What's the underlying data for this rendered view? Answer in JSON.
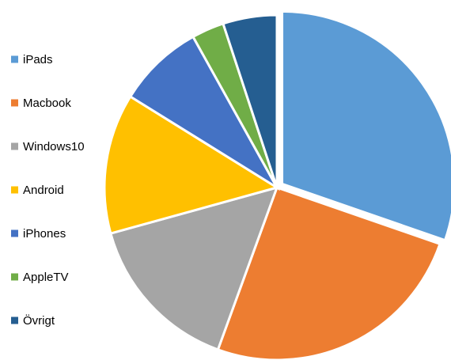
{
  "chart_data": {
    "type": "pie",
    "title": "",
    "legend_position": "left",
    "start_angle_deg": 0,
    "direction": "clockwise",
    "exploded_slice": "iPads",
    "slices": [
      {
        "label": "iPads",
        "value": 30,
        "color": "#5b9bd5"
      },
      {
        "label": "Macbook",
        "value": 25,
        "color": "#ed7d31"
      },
      {
        "label": "Windows10",
        "value": 15,
        "color": "#a5a5a5"
      },
      {
        "label": "Android",
        "value": 13,
        "color": "#ffc000"
      },
      {
        "label": "iPhones",
        "value": 8,
        "color": "#4472c4"
      },
      {
        "label": "AppleTV",
        "value": 3,
        "color": "#70ad47"
      },
      {
        "label": "Övrigt",
        "value": 5,
        "color": "#255e91"
      }
    ]
  }
}
